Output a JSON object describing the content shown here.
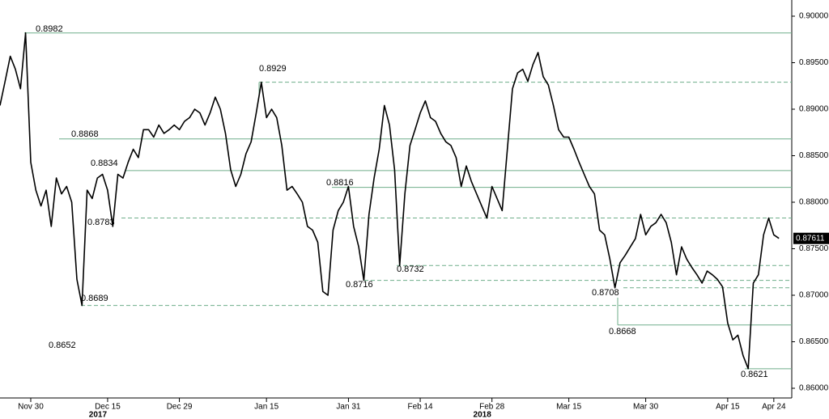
{
  "chart_data": {
    "type": "line",
    "categories": [
      null,
      null,
      null,
      null,
      null,
      null,
      "Nov 30",
      null,
      null,
      null,
      null,
      null,
      null,
      null,
      null,
      null,
      null,
      null,
      null,
      null,
      null,
      "Dec 15",
      null,
      null,
      null,
      null,
      null,
      null,
      null,
      null,
      null,
      null,
      null,
      null,
      null,
      "Dec 29",
      null,
      null,
      null,
      null,
      null,
      null,
      null,
      null,
      null,
      null,
      null,
      null,
      null,
      null,
      null,
      null,
      "Jan 15",
      null,
      null,
      null,
      null,
      null,
      null,
      null,
      null,
      null,
      null,
      null,
      null,
      null,
      null,
      null,
      "Jan 31",
      null,
      null,
      null,
      null,
      null,
      null,
      null,
      null,
      null,
      null,
      null,
      null,
      null,
      "Feb 14",
      null,
      null,
      null,
      null,
      null,
      null,
      null,
      null,
      null,
      null,
      null,
      null,
      null,
      "Feb 28",
      null,
      null,
      null,
      null,
      null,
      null,
      null,
      null,
      null,
      null,
      null,
      null,
      null,
      null,
      "Mar 15",
      null,
      null,
      null,
      null,
      null,
      null,
      null,
      null,
      null,
      null,
      null,
      null,
      null,
      null,
      "Mar 30",
      null,
      null,
      null,
      null,
      null,
      null,
      null,
      null,
      null,
      null,
      null,
      null,
      null,
      null,
      null,
      "Apr 15",
      null,
      null,
      null,
      null,
      null,
      null,
      null,
      null,
      "Apr 24",
      null
    ],
    "years": [
      {
        "label": "2017",
        "category": "Dec 15"
      },
      {
        "label": "2018",
        "category": "Feb 28"
      }
    ],
    "series": [
      {
        "color": "#000000",
        "values": [
          0.8904,
          0.893,
          0.8957,
          0.8943,
          0.8922,
          0.8982,
          0.8843,
          0.8813,
          0.8796,
          0.8813,
          0.8774,
          0.8826,
          0.8809,
          0.8817,
          0.88,
          0.8717,
          0.8689,
          0.8813,
          0.8804,
          0.8826,
          0.883,
          0.8813,
          0.8774,
          0.883,
          0.8826,
          0.8843,
          0.8857,
          0.8848,
          0.8878,
          0.8878,
          0.887,
          0.8883,
          0.8874,
          0.8878,
          0.8883,
          0.8878,
          0.8887,
          0.8891,
          0.89,
          0.8896,
          0.8883,
          0.8896,
          0.8913,
          0.89,
          0.8874,
          0.8835,
          0.8817,
          0.883,
          0.8852,
          0.8865,
          0.8896,
          0.8929,
          0.8891,
          0.89,
          0.8891,
          0.8861,
          0.8813,
          0.8817,
          0.8809,
          0.88,
          0.8774,
          0.877,
          0.8757,
          0.8704,
          0.87,
          0.877,
          0.8791,
          0.88,
          0.8817,
          0.8774,
          0.8752,
          0.8716,
          0.8787,
          0.8826,
          0.8857,
          0.8904,
          0.8883,
          0.8835,
          0.8732,
          0.8809,
          0.8861,
          0.8878,
          0.8896,
          0.8909,
          0.8891,
          0.8887,
          0.8874,
          0.8865,
          0.8861,
          0.8848,
          0.8817,
          0.8839,
          0.8822,
          0.8809,
          0.8796,
          0.8783,
          0.8817,
          0.8804,
          0.8791,
          0.8857,
          0.8922,
          0.8939,
          0.8943,
          0.893,
          0.8948,
          0.8961,
          0.8935,
          0.8926,
          0.8904,
          0.8878,
          0.887,
          0.887,
          0.8857,
          0.8843,
          0.883,
          0.8817,
          0.8809,
          0.877,
          0.8765,
          0.8739,
          0.8708,
          0.8735,
          0.8743,
          0.8752,
          0.8761,
          0.8787,
          0.8765,
          0.8774,
          0.8778,
          0.8787,
          0.8778,
          0.8757,
          0.8722,
          0.8752,
          0.8739,
          0.873,
          0.8722,
          0.8713,
          0.8726,
          0.8722,
          0.8717,
          0.8709,
          0.867,
          0.8652,
          0.8657,
          0.8635,
          0.8621,
          0.8713,
          0.8722,
          0.8765,
          0.8783,
          0.8765,
          0.87611
        ]
      }
    ],
    "levels": [
      {
        "value": 0.8982,
        "style": "solid"
      },
      {
        "value": 0.8929,
        "style": "dashed"
      },
      {
        "value": 0.8868,
        "style": "solid"
      },
      {
        "value": 0.8834,
        "style": "solid"
      },
      {
        "value": 0.8816,
        "style": "solid"
      },
      {
        "value": 0.8783,
        "style": "dashed"
      },
      {
        "value": 0.8732,
        "style": "dashed"
      },
      {
        "value": 0.8716,
        "style": "dashed"
      },
      {
        "value": 0.8708,
        "style": "dashed"
      },
      {
        "value": 0.8689,
        "style": "dashed"
      },
      {
        "value": 0.8668,
        "style": "solid"
      },
      {
        "value": 0.8621,
        "style": "solid"
      },
      {
        "value": 0.8652,
        "style": "none"
      }
    ],
    "level_color": "#6fae8a",
    "ylim": [
      0.85913,
      0.90174
    ],
    "yticks": [
      {
        "value": 0.86,
        "label": "0.86000"
      },
      {
        "value": 0.865,
        "label": "0.86500"
      },
      {
        "value": 0.87,
        "label": "0.87000"
      },
      {
        "value": 0.875,
        "label": "0.87500"
      },
      {
        "value": 0.88,
        "label": "0.88000"
      },
      {
        "value": 0.885,
        "label": "0.88500"
      },
      {
        "value": 0.89,
        "label": "0.89000"
      },
      {
        "value": 0.895,
        "label": "0.89500"
      },
      {
        "value": 0.9,
        "label": "0.90000"
      }
    ]
  }
}
